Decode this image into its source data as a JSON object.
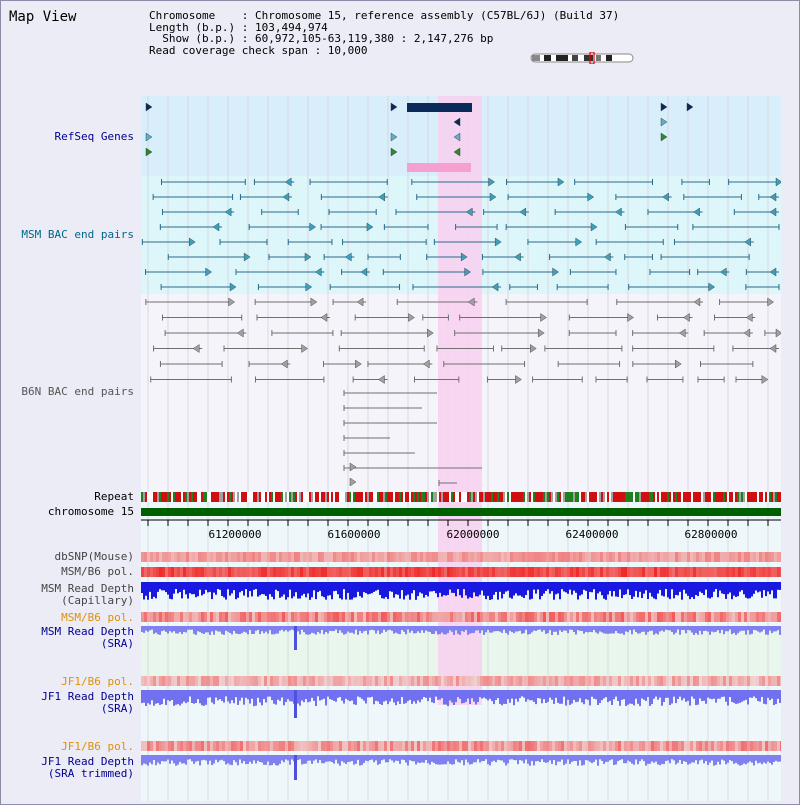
{
  "title": "Map View",
  "info": {
    "line1": "Chromosome    : Chromosome 15, reference assembly (C57BL/6J) (Build 37)",
    "line2": "Length (b.p.) : 103,494,974",
    "line3": "  Show (b.p.) : 60,972,105-63,119,380 : 2,147,276 bp",
    "line4": "Read coverage check span : 10,000"
  },
  "tracks": {
    "refseq": "RefSeq Genes",
    "msm_bac": "MSM BAC end pairs",
    "b6n_bac": "B6N BAC end pairs",
    "repeat": "Repeat",
    "chromosome": "chromosome 15",
    "dbsnp": "dbSNP(Mouse)",
    "msm_b6_pol_1": "MSM/B6 pol.",
    "msm_depth_cap_1": "MSM Read Depth",
    "msm_depth_cap_2": "(Capillary)",
    "msm_b6_pol_2": "MSM/B6 pol.",
    "msm_depth_sra_1": "MSM Read Depth",
    "msm_depth_sra_2": "(SRA)",
    "jf1_b6_pol_1": "JF1/B6 pol.",
    "jf1_depth_sra_1": "JF1 Read Depth",
    "jf1_depth_sra_2": "(SRA)",
    "jf1_b6_pol_2": "JF1/B6 pol.",
    "jf1_depth_trim_1": "JF1 Read Depth",
    "jf1_depth_trim_2": "(SRA trimmed)"
  },
  "axis_ticks": [
    "61200000",
    "61600000",
    "62000000",
    "62400000",
    "62800000"
  ],
  "colors": {
    "highlight": "#f8d0f0",
    "refseq_bg": "#d8eefa",
    "msm_bg": "#dcf6fa",
    "chromosome_bar": "#006000",
    "label_navy": "#000090",
    "label_teal": "#006688",
    "label_gray": "#555555",
    "label_orange": "#e09000"
  }
}
